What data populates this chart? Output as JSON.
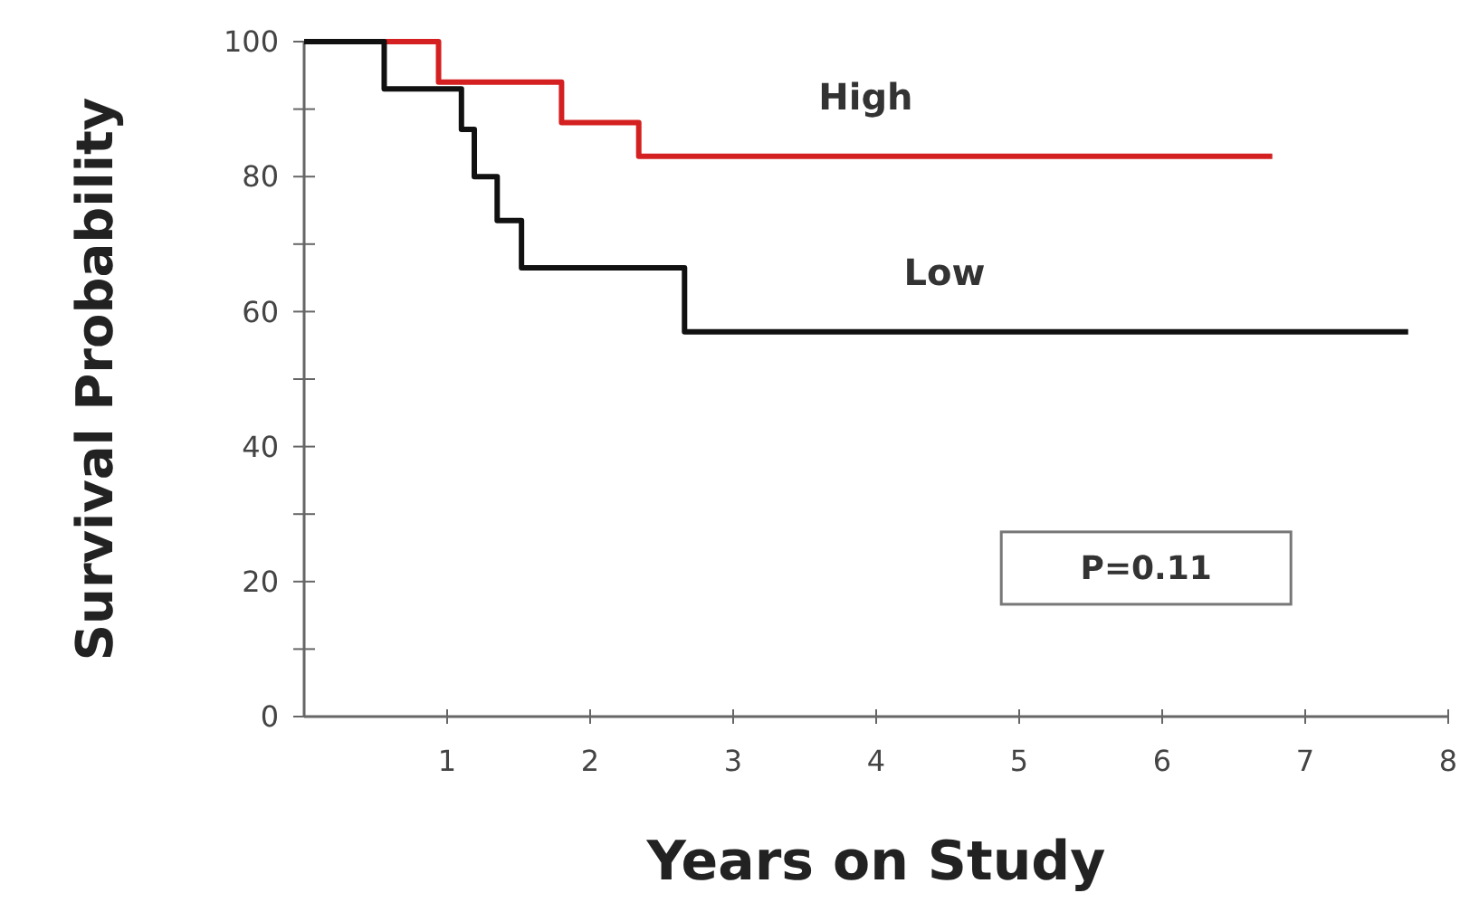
{
  "chart_data": {
    "type": "step",
    "xlabel": "Years on Study",
    "ylabel": "Survival Probability",
    "xlim": [
      0,
      8
    ],
    "xticks": [
      1,
      2,
      3,
      4,
      5,
      6,
      7,
      8
    ],
    "ylim": [
      0,
      100
    ],
    "yticks": [
      0,
      {
        "value": 10,
        "label": null
      },
      20,
      {
        "value": 30,
        "label": null
      },
      40,
      {
        "value": 50,
        "label": null
      },
      60,
      {
        "value": 70,
        "label": null
      },
      80,
      {
        "value": 90,
        "label": null
      },
      100
    ],
    "series": [
      {
        "name": "High",
        "color": "#d42020",
        "x": [
          0,
          0.94,
          1.8,
          2.34,
          6.77
        ],
        "values": [
          100,
          94,
          88,
          83,
          83
        ]
      },
      {
        "name": "Low",
        "color": "#111111",
        "x": [
          0,
          0.56,
          1.1,
          1.19,
          1.35,
          1.52,
          2.66,
          7.72
        ],
        "values": [
          100,
          93,
          87,
          80,
          73.5,
          66.5,
          57,
          57
        ]
      }
    ],
    "annotations": [
      "P=0.11"
    ],
    "marker": "none",
    "line_style": "solid",
    "grid": false
  }
}
